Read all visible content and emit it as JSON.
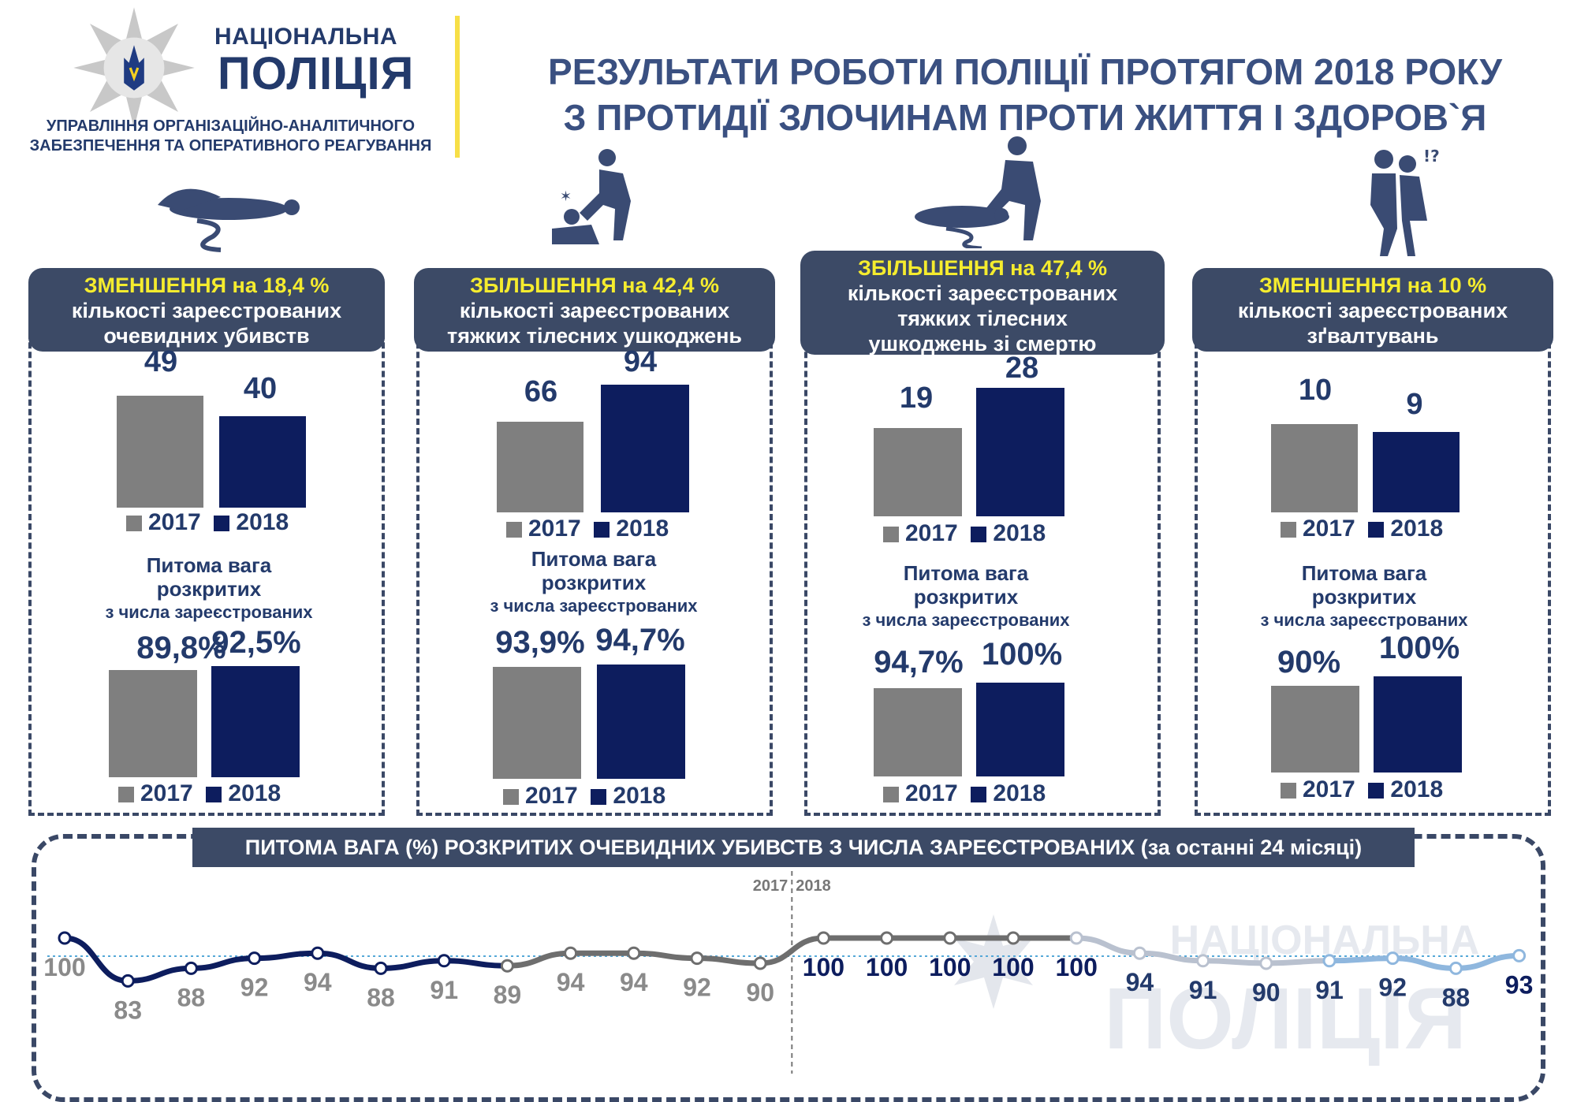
{
  "header": {
    "org_line1": "НАЦІОНАЛЬНА",
    "org_line2": "ПОЛІЦІЯ",
    "dept_line1": "УПРАВЛІННЯ ОРГАНІЗАЦІЙНО-АНАЛІТИЧНОГО",
    "dept_line2": "ЗАБЕЗПЕЧЕННЯ ТА ОПЕРАТИВНОГО РЕАГУВАННЯ",
    "title_line1": "РЕЗУЛЬТАТИ РОБОТИ ПОЛІЦІЇ ПРОТЯГОМ 2018 РОКУ",
    "title_line2": "З ПРОТИДІЇ ЗЛОЧИНАМ ПРОТИ ЖИТТЯ І ЗДОРОВ`Я",
    "watermark_line1": "НАЦІОНАЛЬНА",
    "watermark_line2": "ПОЛІЦІЯ"
  },
  "colors": {
    "gray": "#7f7f7f",
    "navy": "#0d1d5e",
    "panel": "#3c4a66",
    "highlight": "#f5ec2e",
    "text": "#233a6b"
  },
  "chart_data": [
    {
      "type": "bar",
      "highlight": "ЗМЕНШЕННЯ на 18,4 %",
      "title_line1": "кількості зареєстрованих",
      "title_line2": "очевидних убивств",
      "title_line3": "",
      "categories": [
        "2017",
        "2018"
      ],
      "values": [
        49,
        40
      ],
      "labels": [
        "49",
        "40"
      ],
      "subtitle_line1": "Питома вага",
      "subtitle_line2": "розкритих",
      "subtitle_line3": "з числа зареєстрованих",
      "share_values": [
        89.8,
        92.5
      ],
      "share_labels": [
        "89,8%",
        "92,5%"
      ]
    },
    {
      "type": "bar",
      "highlight": "ЗБІЛЬШЕННЯ на 42,4 %",
      "title_line1": "кількості зареєстрованих",
      "title_line2": "тяжких тілесних ушкоджень",
      "title_line3": "",
      "categories": [
        "2017",
        "2018"
      ],
      "values": [
        66,
        94
      ],
      "labels": [
        "66",
        "94"
      ],
      "subtitle_line1": "Питома вага",
      "subtitle_line2": "розкритих",
      "subtitle_line3": "з числа зареєстрованих",
      "share_values": [
        93.9,
        94.7
      ],
      "share_labels": [
        "93,9%",
        "94,7%"
      ]
    },
    {
      "type": "bar",
      "highlight": "ЗБІЛЬШЕННЯ на 47,4 %",
      "title_line1": "кількості зареєстрованих",
      "title_line2": "тяжких тілесних",
      "title_line3": "ушкоджень зі смертю",
      "categories": [
        "2017",
        "2018"
      ],
      "values": [
        19,
        28
      ],
      "labels": [
        "19",
        "28"
      ],
      "subtitle_line1": "Питома вага",
      "subtitle_line2": "розкритих",
      "subtitle_line3": "з числа зареєстрованих",
      "share_values": [
        94.7,
        100
      ],
      "share_labels": [
        "94,7%",
        "100%"
      ]
    },
    {
      "type": "bar",
      "highlight": "ЗМЕНШЕННЯ на 10 %",
      "title_line1": "кількості зареєстрованих",
      "title_line2": "зґвалтувань",
      "title_line3": "",
      "categories": [
        "2017",
        "2018"
      ],
      "values": [
        10,
        9
      ],
      "labels": [
        "10",
        "9"
      ],
      "subtitle_line1": "Питома вага",
      "subtitle_line2": "розкритих",
      "subtitle_line3": "з числа зареєстрованих",
      "share_values": [
        90,
        100
      ],
      "share_labels": [
        "90%",
        "100%"
      ]
    },
    {
      "type": "line",
      "title": "ПИТОМА ВАГА (%) РОЗКРИТИХ ОЧЕВИДНИХ УБИВСТВ З ЧИСЛА ЗАРЕЄСТРОВАНИХ (за останні 24 місяці)",
      "divider_labels": [
        "2017",
        "2018"
      ],
      "values": [
        100,
        83,
        88,
        92,
        94,
        88,
        91,
        89,
        94,
        94,
        92,
        90,
        100,
        100,
        100,
        100,
        100,
        94,
        91,
        90,
        91,
        92,
        88,
        93
      ],
      "year_split_index": 12
    }
  ]
}
